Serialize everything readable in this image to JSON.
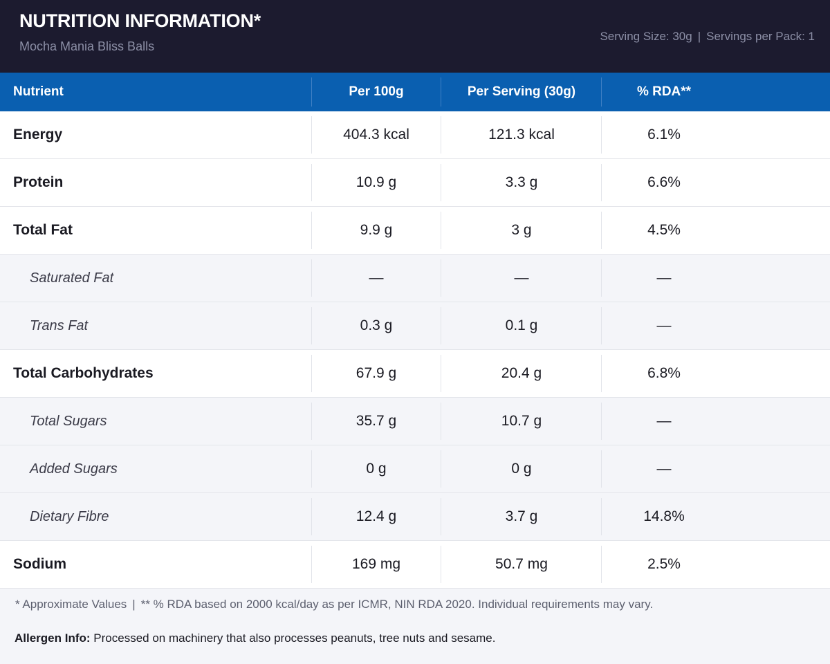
{
  "header": {
    "title": "NUTRITION INFORMATION*",
    "subtitle": "Mocha Mania Bliss Balls",
    "serving_size": "Serving Size: 30g",
    "separator": "|",
    "servings_per_pack": "Servings per Pack: 1"
  },
  "table": {
    "columns": [
      "Nutrient",
      "Per 100g",
      "Per Serving (30g)",
      "% RDA**"
    ],
    "rows": [
      {
        "nutrient": "Energy",
        "per100": "404.3 kcal",
        "perServing": "121.3 kcal",
        "rda": "6.1%",
        "sub": false
      },
      {
        "nutrient": "Protein",
        "per100": "10.9 g",
        "perServing": "3.3 g",
        "rda": "6.6%",
        "sub": false
      },
      {
        "nutrient": "Total Fat",
        "per100": "9.9 g",
        "perServing": "3 g",
        "rda": "4.5%",
        "sub": false
      },
      {
        "nutrient": "Saturated Fat",
        "per100": "—",
        "perServing": "—",
        "rda": "—",
        "sub": true
      },
      {
        "nutrient": "Trans Fat",
        "per100": "0.3 g",
        "perServing": "0.1 g",
        "rda": "—",
        "sub": true
      },
      {
        "nutrient": "Total Carbohydrates",
        "per100": "67.9 g",
        "perServing": "20.4 g",
        "rda": "6.8%",
        "sub": false
      },
      {
        "nutrient": "Total Sugars",
        "per100": "35.7 g",
        "perServing": "10.7 g",
        "rda": "—",
        "sub": true
      },
      {
        "nutrient": "Added Sugars",
        "per100": "0 g",
        "perServing": "0 g",
        "rda": "—",
        "sub": true
      },
      {
        "nutrient": "Dietary Fibre",
        "per100": "12.4 g",
        "perServing": "3.7 g",
        "rda": "14.8%",
        "sub": true
      },
      {
        "nutrient": "Sodium",
        "per100": "169 mg",
        "perServing": "50.7 mg",
        "rda": "2.5%",
        "sub": false
      }
    ]
  },
  "footer": {
    "note_approx": "* Approximate Values",
    "separator": "|",
    "note_rda": "** % RDA based on 2000 kcal/day as per ICMR, NIN RDA 2020. Individual requirements may vary.",
    "allergen_label": "Allergen Info:",
    "allergen_text": "Processed on machinery that also processes peanuts, tree nuts and sesame."
  },
  "colors": {
    "header_bg": "#1c1b2f",
    "table_header_bg": "#0a5fb0",
    "sub_row_bg": "#f4f5f9"
  }
}
